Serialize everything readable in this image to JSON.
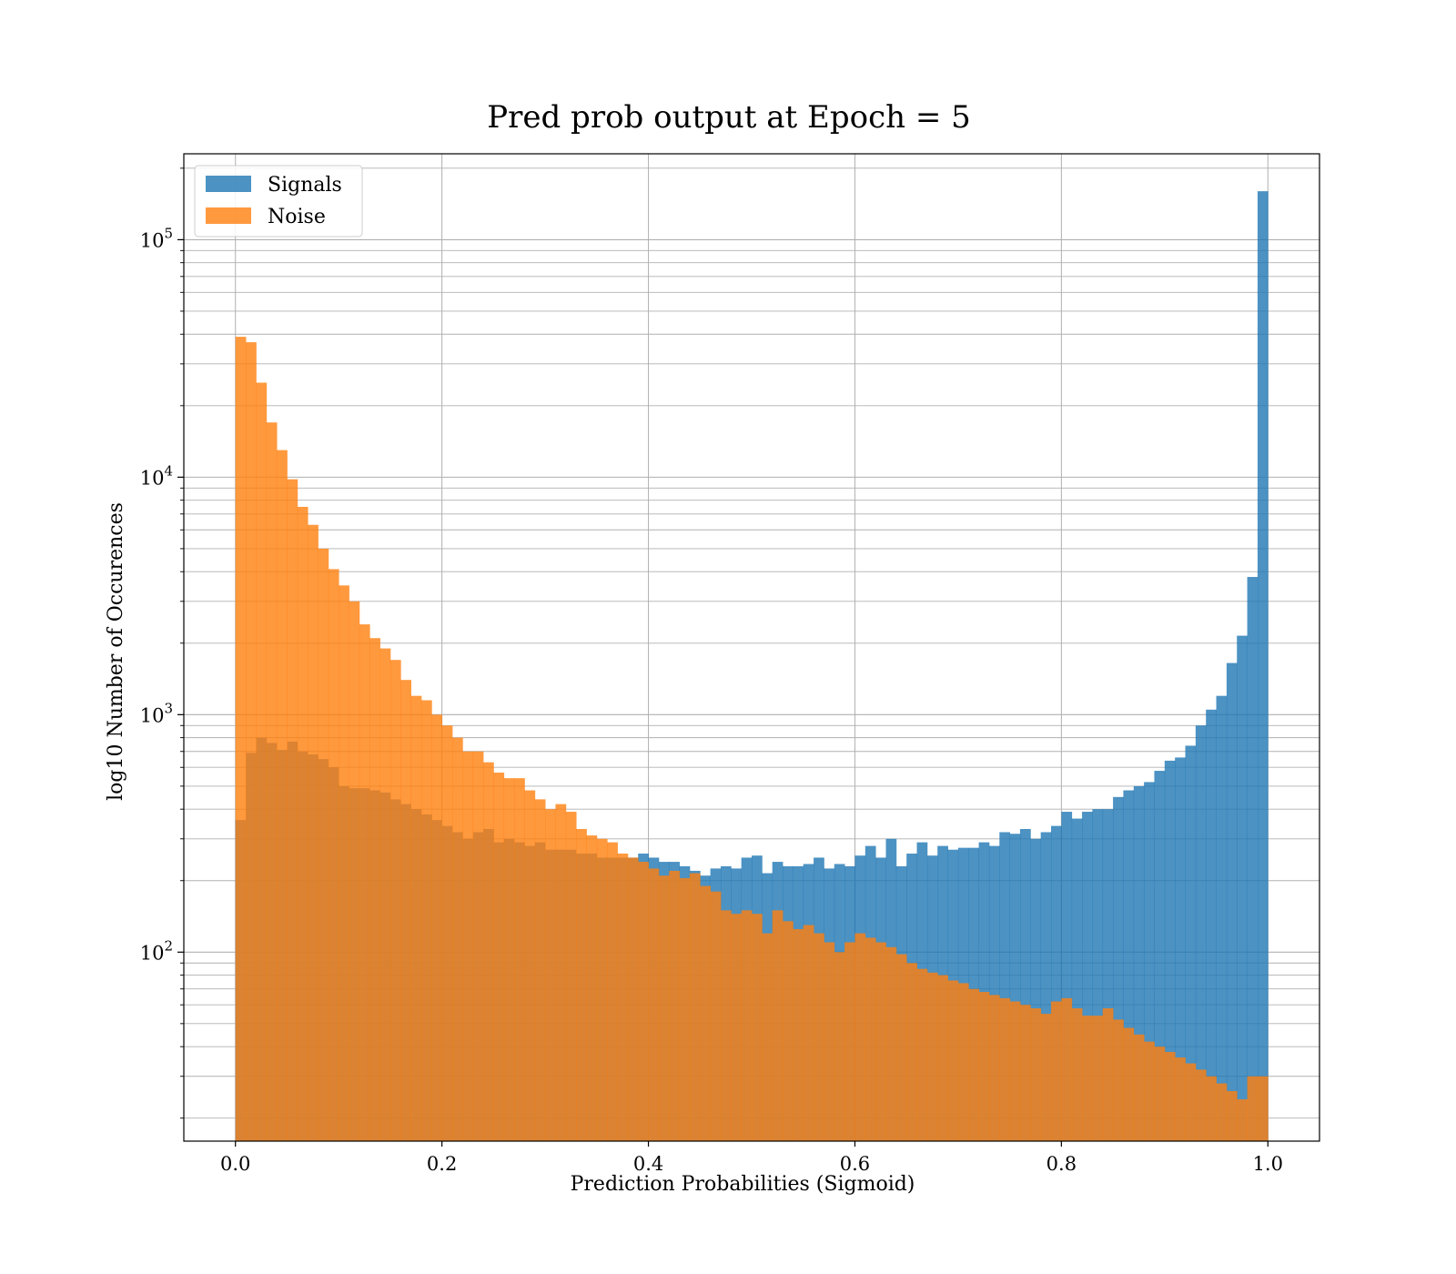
{
  "chart_data": {
    "type": "bar",
    "title": "Pred prob output at Epoch = 5",
    "xlabel": "Prediction Probabilities (Sigmoid)",
    "ylabel": "log10 Number of Occurences",
    "xlim": [
      -0.05,
      1.05
    ],
    "ylim": [
      16,
      230000
    ],
    "y_scale": "log",
    "grid": true,
    "legend_position": "top-left",
    "x_ticks": [
      "0.0",
      "0.2",
      "0.4",
      "0.6",
      "0.8",
      "1.0"
    ],
    "y_ticks": [
      {
        "base": "10",
        "exp": "2"
      },
      {
        "base": "10",
        "exp": "3"
      },
      {
        "base": "10",
        "exp": "4"
      },
      {
        "base": "10",
        "exp": "5"
      }
    ],
    "bin_range": [
      0,
      1
    ],
    "bin_count": 100,
    "series": [
      {
        "name": "Signals",
        "color": "#1f77b4",
        "opacity": 0.8,
        "values": [
          360,
          690,
          800,
          760,
          710,
          770,
          700,
          680,
          650,
          600,
          500,
          490,
          490,
          480,
          470,
          440,
          420,
          400,
          380,
          360,
          340,
          320,
          300,
          320,
          330,
          290,
          300,
          290,
          280,
          290,
          270,
          270,
          270,
          260,
          260,
          250,
          250,
          250,
          250,
          260,
          250,
          240,
          240,
          230,
          220,
          210,
          225,
          230,
          225,
          250,
          255,
          215,
          240,
          230,
          230,
          235,
          250,
          225,
          235,
          230,
          255,
          280,
          250,
          300,
          230,
          260,
          290,
          255,
          280,
          270,
          275,
          275,
          290,
          280,
          320,
          315,
          330,
          300,
          320,
          340,
          390,
          365,
          390,
          400,
          400,
          450,
          480,
          500,
          520,
          580,
          640,
          660,
          740,
          900,
          1050,
          1200,
          1650,
          2150,
          3800,
          160000
        ]
      },
      {
        "name": "Noise",
        "color": "#ff7f0e",
        "opacity": 0.8,
        "values": [
          39000,
          37000,
          25000,
          17000,
          13000,
          9800,
          7500,
          6300,
          5000,
          4100,
          3500,
          3000,
          2400,
          2100,
          1900,
          1700,
          1400,
          1200,
          1150,
          1000,
          900,
          800,
          700,
          700,
          630,
          570,
          540,
          540,
          480,
          440,
          400,
          420,
          390,
          330,
          310,
          300,
          290,
          260,
          250,
          240,
          225,
          210,
          220,
          205,
          215,
          190,
          180,
          150,
          145,
          150,
          145,
          120,
          150,
          135,
          125,
          130,
          120,
          110,
          100,
          110,
          120,
          115,
          110,
          105,
          98,
          90,
          85,
          82,
          80,
          76,
          74,
          70,
          68,
          66,
          64,
          62,
          60,
          58,
          55,
          62,
          64,
          58,
          54,
          54,
          58,
          52,
          48,
          45,
          42,
          40,
          38,
          36,
          34,
          32,
          30,
          28,
          26,
          24,
          30,
          30
        ]
      }
    ]
  }
}
